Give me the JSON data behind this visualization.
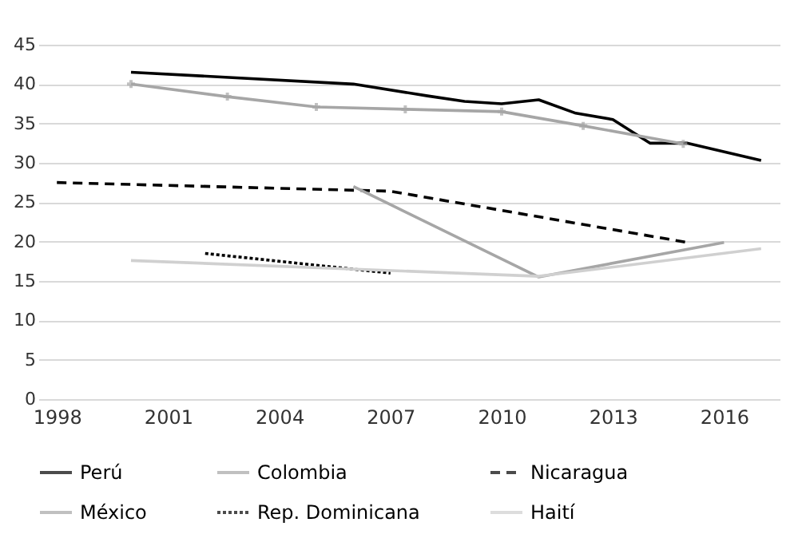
{
  "chart_data": {
    "type": "line",
    "xlim": [
      1997.5,
      2017.5
    ],
    "xticks": [
      1998,
      2001,
      2004,
      2007,
      2010,
      2013,
      2016
    ],
    "ylim": [
      0,
      45
    ],
    "yticks": [
      0,
      5,
      10,
      15,
      20,
      25,
      30,
      35,
      40,
      45
    ],
    "grid": "y",
    "legend": "bottom",
    "series": [
      {
        "name": "Perú",
        "color": "#000000",
        "line_style": "solid",
        "x": [
          2000,
          2006,
          2008,
          2009,
          2010,
          2011,
          2012,
          2013,
          2014,
          2015,
          2017
        ],
        "values": [
          41.5,
          40,
          38.5,
          37.8,
          37.5,
          38,
          36.3,
          35.5,
          32.5,
          32.5,
          30.3
        ]
      },
      {
        "name": "Colombia",
        "color": "#a6a6a6",
        "line_style": "solid",
        "marker": "cross",
        "x": [
          2000,
          2002.6,
          2005,
          2007.4,
          2010,
          2012.2,
          2014.9
        ],
        "values": [
          40,
          38.4,
          37.1,
          36.8,
          36.5,
          34.7,
          32.4
        ]
      },
      {
        "name": "Nicaragua",
        "color": "#000000",
        "line_style": "dashed",
        "x": [
          1998,
          2007,
          2015
        ],
        "values": [
          27.5,
          26.4,
          19.9
        ]
      },
      {
        "name": "México",
        "color": "#a6a6a6",
        "line_style": "solid",
        "x": [
          2006,
          2011,
          2016
        ],
        "values": [
          27,
          15.5,
          19.9
        ]
      },
      {
        "name": "Rep. Dominicana",
        "color": "#000000",
        "line_style": "dotted",
        "x": [
          2002,
          2007
        ],
        "values": [
          18.5,
          16
        ]
      },
      {
        "name": "Haití",
        "color": "#d0d0d0",
        "line_style": "solid",
        "x": [
          2000,
          2011,
          2017
        ],
        "values": [
          17.6,
          15.6,
          19.1
        ]
      }
    ]
  }
}
